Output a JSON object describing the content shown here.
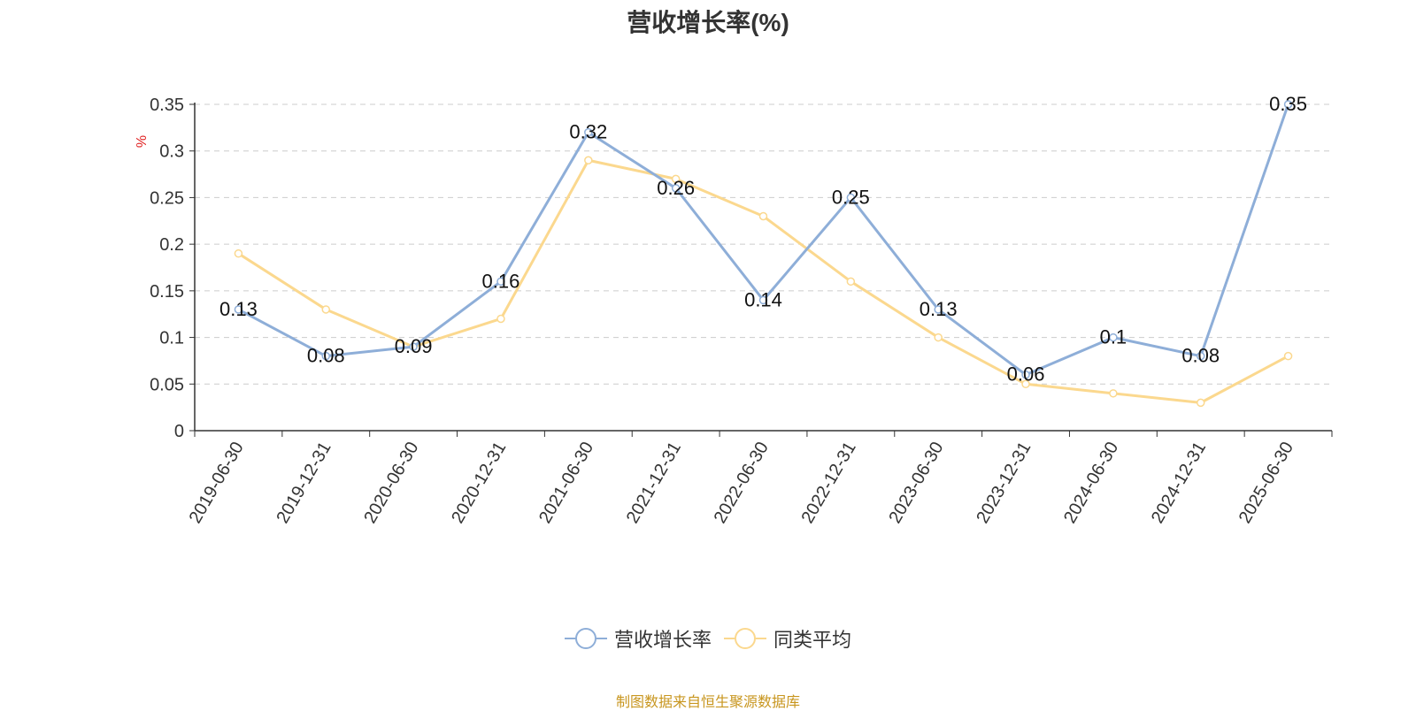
{
  "chart_data": {
    "type": "line",
    "title": "营收增长率(%)",
    "ylabel": "%",
    "xlabel": "",
    "categories": [
      "2019-06-30",
      "2019-12-31",
      "2020-06-30",
      "2020-12-31",
      "2021-06-30",
      "2021-12-31",
      "2022-06-30",
      "2022-12-31",
      "2023-06-30",
      "2023-12-31",
      "2024-06-30",
      "2024-12-31",
      "2025-06-30"
    ],
    "ylim": [
      0,
      0.35
    ],
    "yticks": [
      "0",
      "0.05",
      "0.1",
      "0.15",
      "0.2",
      "0.25",
      "0.3",
      "0.35"
    ],
    "grid": true,
    "legend_position": "bottom",
    "series": [
      {
        "name": "营收增长率",
        "color": "#8eaed8",
        "show_labels": true,
        "values": [
          0.13,
          0.08,
          0.09,
          0.16,
          0.32,
          0.26,
          0.14,
          0.25,
          0.13,
          0.06,
          0.1,
          0.08,
          0.35
        ],
        "labels": [
          "0.13",
          "0.08",
          "0.09",
          "0.16",
          "0.32",
          "0.26",
          "0.14",
          "0.25",
          "0.13",
          "0.06",
          "0.1",
          "0.08",
          "0.35"
        ]
      },
      {
        "name": "同类平均",
        "color": "#fbd88e",
        "show_labels": false,
        "values": [
          0.19,
          0.13,
          0.09,
          0.12,
          0.29,
          0.27,
          0.23,
          0.16,
          0.1,
          0.05,
          0.04,
          0.03,
          0.08
        ]
      }
    ]
  },
  "source": "制图数据来自恒生聚源数据库"
}
